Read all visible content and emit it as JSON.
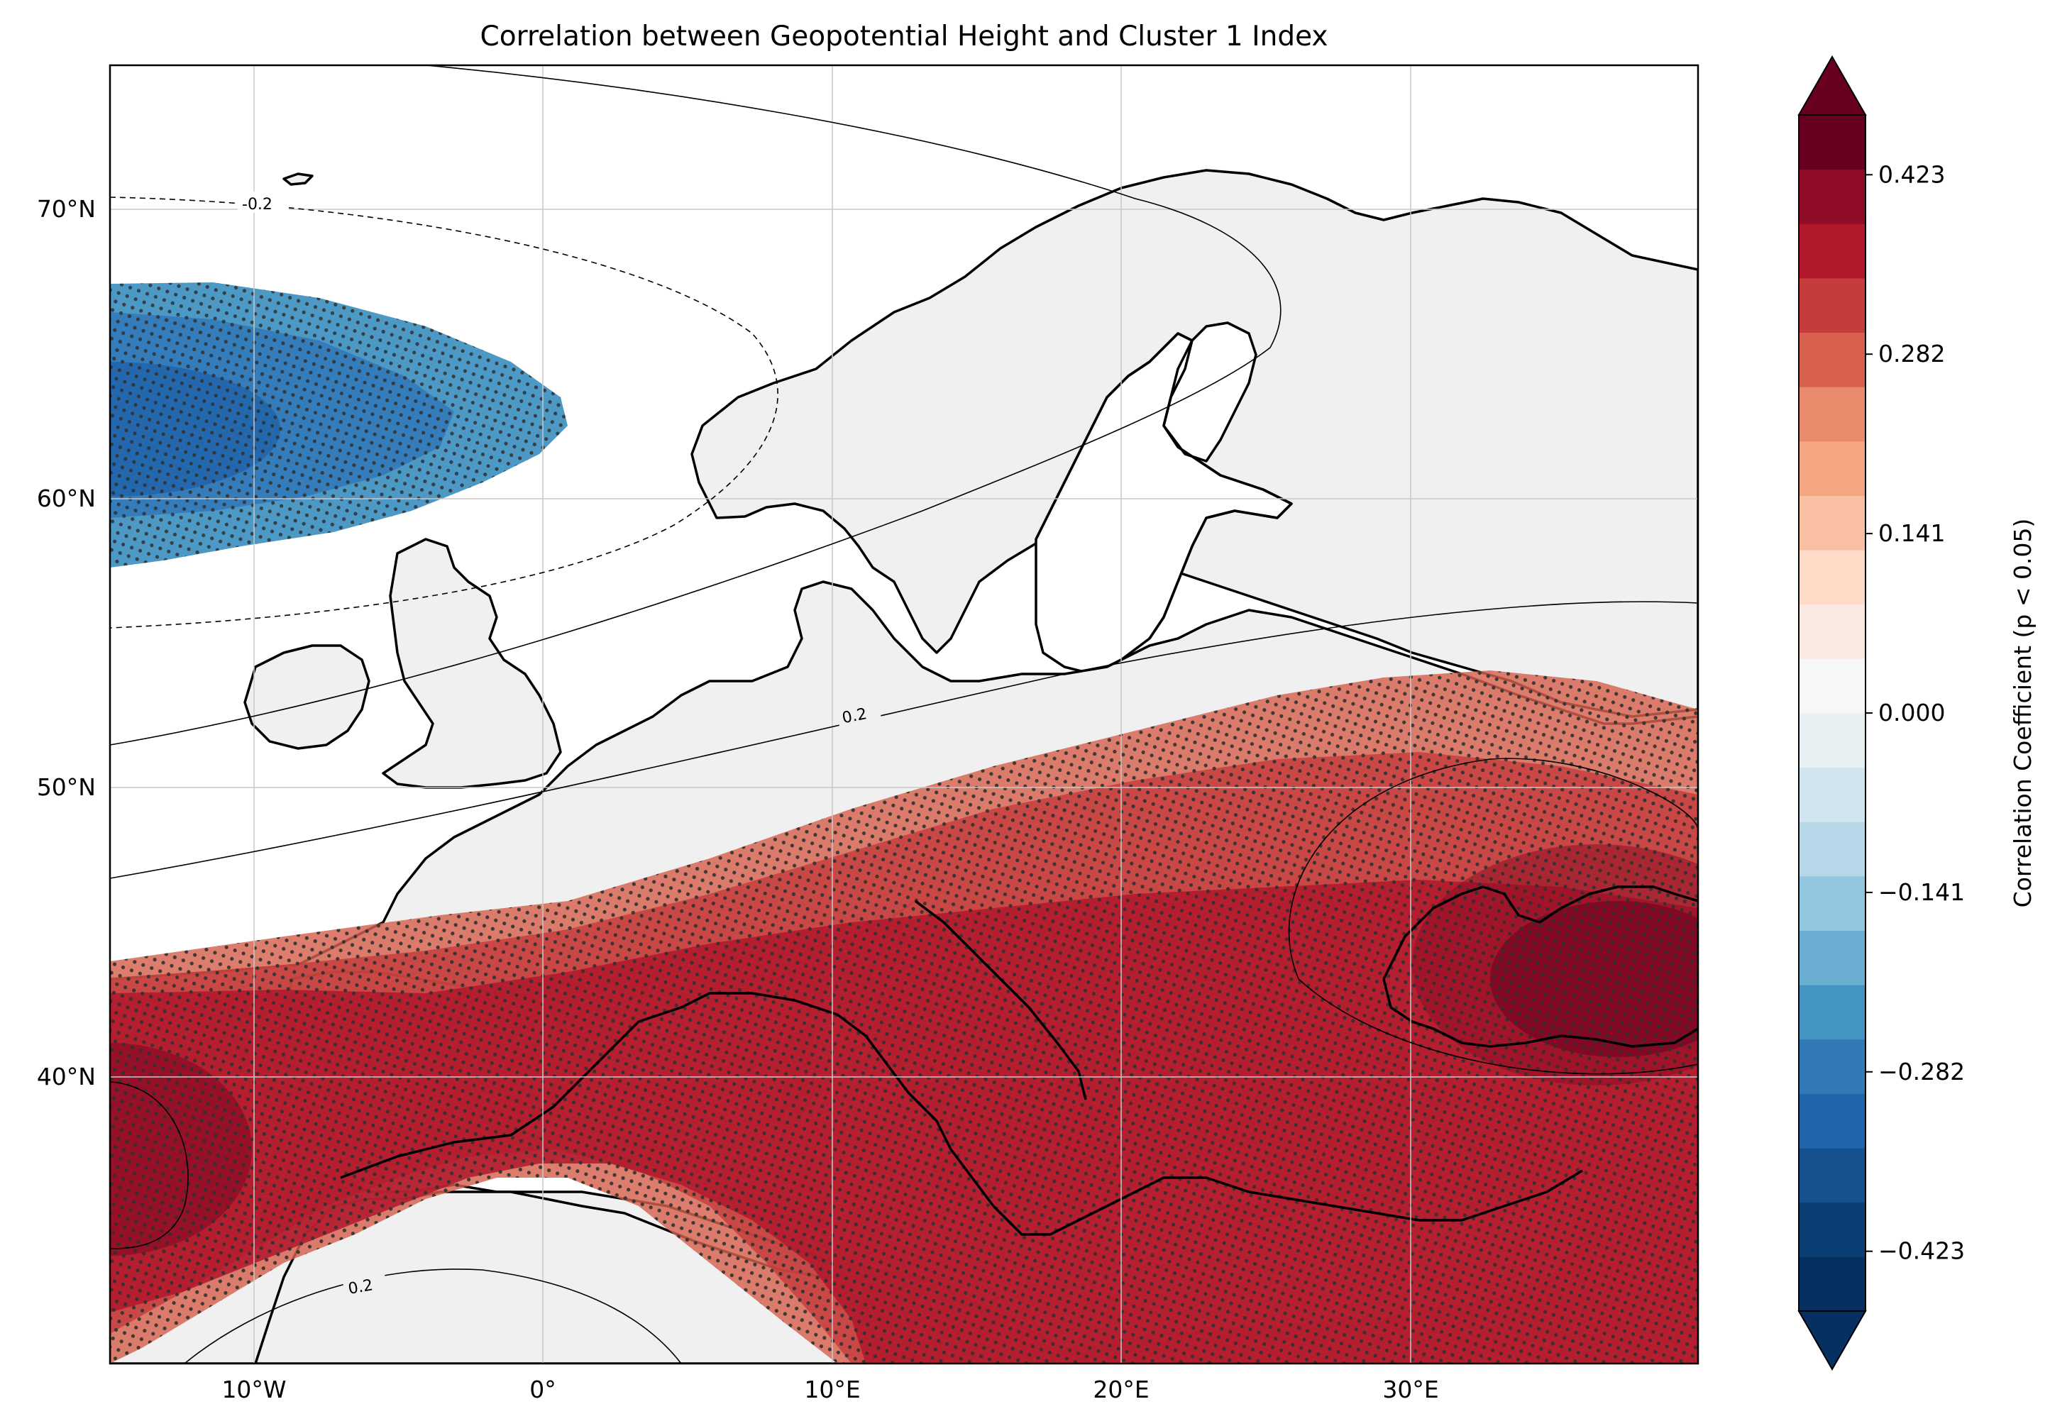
{
  "map": {
    "title": "Correlation between Geopotential Height and Cluster 1 Index",
    "lat_ticks": [
      "70°N",
      "60°N",
      "50°N",
      "40°N"
    ],
    "lon_ticks": [
      "10°W",
      "0°",
      "10°E",
      "20°E",
      "30°E"
    ],
    "contour_labels": [
      "-0.2",
      "0.2",
      "0.2"
    ],
    "colors": {
      "land": "#f0f0f0",
      "ocean": "#ffffff",
      "coastline": "#000000",
      "gridline": "#c8c8c8",
      "stipple": "#303030"
    }
  },
  "colorbar": {
    "label": "Correlation Coefficient (p < 0.05)",
    "ticks": [
      "0.423",
      "0.282",
      "0.141",
      "0.000",
      "−0.141",
      "−0.282",
      "−0.423"
    ],
    "colormap": "RdBu_r",
    "levels": [
      -0.47,
      0.47
    ],
    "tick_values": [
      0.423,
      0.282,
      0.141,
      0.0,
      -0.141,
      -0.282,
      -0.423
    ],
    "colors": [
      "#053061",
      "#0b3e74",
      "#17508f",
      "#2166ac",
      "#3279b8",
      "#4393c3",
      "#6aaed2",
      "#92c5de",
      "#b5d7e8",
      "#d1e5f0",
      "#e8f0f4",
      "#f7f7f7",
      "#faeae1",
      "#fddbc7",
      "#f8bfa3",
      "#f4a582",
      "#e88a6c",
      "#d6604d",
      "#c43c3c",
      "#b2182b",
      "#8e0c25",
      "#67001f"
    ]
  }
}
